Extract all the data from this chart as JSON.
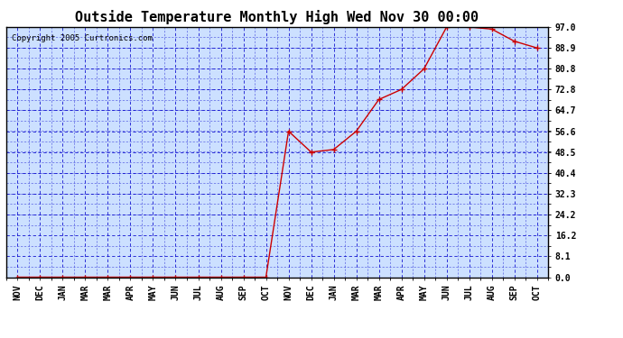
{
  "title": "Outside Temperature Monthly High Wed Nov 30 00:00",
  "copyright": "Copyright 2005 Curtronics.com",
  "x_labels": [
    "NOV",
    "DEC",
    "JAN",
    "MAR",
    "MAR",
    "APR",
    "MAY",
    "JUN",
    "JUL",
    "AUG",
    "SEP",
    "OCT",
    "NOV",
    "DEC",
    "JAN",
    "MAR",
    "MAR",
    "APR",
    "MAY",
    "JUN",
    "JUL",
    "AUG",
    "SEP",
    "OCT"
  ],
  "y_values": [
    0.0,
    0.0,
    0.0,
    0.0,
    0.0,
    0.0,
    0.0,
    0.0,
    0.0,
    0.0,
    0.0,
    0.0,
    56.6,
    48.5,
    49.5,
    56.6,
    68.9,
    72.8,
    80.8,
    97.0,
    97.0,
    96.2,
    91.5,
    88.9
  ],
  "yticks": [
    0.0,
    8.1,
    16.2,
    24.2,
    32.3,
    40.4,
    48.5,
    56.6,
    64.7,
    72.8,
    80.8,
    88.9,
    97.0
  ],
  "ymin": 0.0,
  "ymax": 97.0,
  "line_color": "#CC0000",
  "marker": "+",
  "marker_size": 5,
  "background_color": "#FFFFFF",
  "plot_bg_color": "#CCE0FF",
  "grid_color": "#0000CC",
  "border_color": "#000000",
  "title_fontsize": 11,
  "tick_fontsize": 7,
  "copyright_fontsize": 6.5
}
